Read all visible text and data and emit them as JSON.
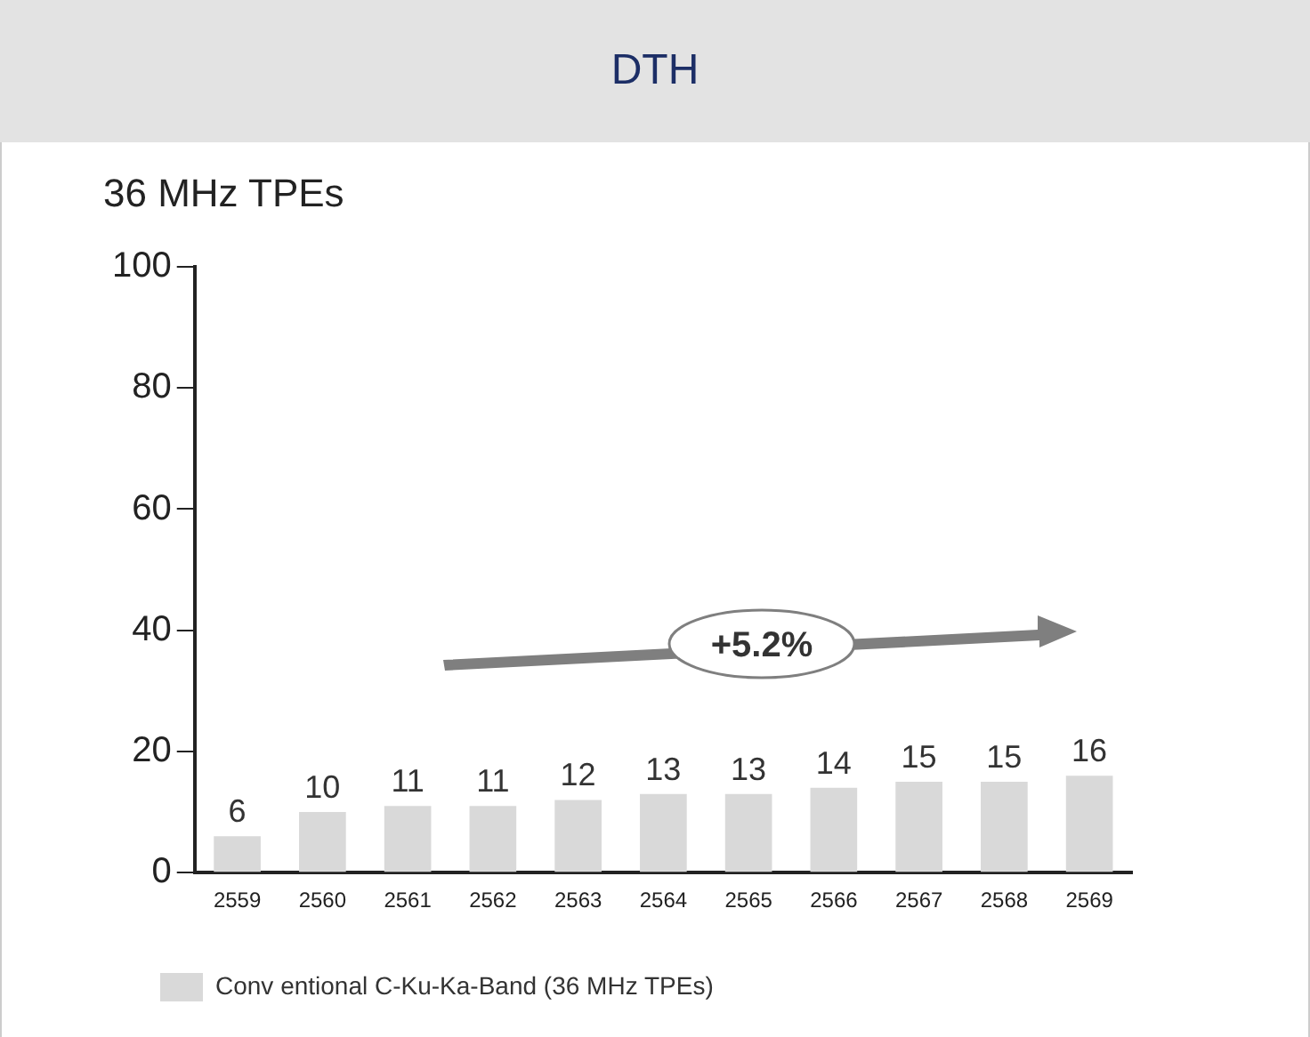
{
  "chart_data": {
    "type": "bar",
    "title": "DTH",
    "ylabel": "36 MHz TPEs",
    "categories": [
      "2559",
      "2560",
      "2561",
      "2562",
      "2563",
      "2564",
      "2565",
      "2566",
      "2567",
      "2568",
      "2569"
    ],
    "series": [
      {
        "name": "Conv entional C-Ku-Ka-Band (36 MHz TPEs)",
        "color": "#d9d9d9",
        "values": [
          6,
          10,
          11,
          11,
          12,
          13,
          13,
          14,
          15,
          15,
          16
        ]
      }
    ],
    "ylim": [
      0,
      100
    ],
    "yticks": [
      0,
      20,
      40,
      60,
      80,
      100
    ],
    "grid": false,
    "legend": "bottom",
    "data_labels": true,
    "annotations": [
      "+5.2%"
    ]
  }
}
